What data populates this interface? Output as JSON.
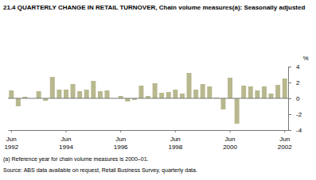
{
  "chart_data": {
    "type": "bar",
    "title": "21.4   QUARTERLY CHANGE IN RETAIL TURNOVER, Chain volume measures(a): Seasonally adjusted",
    "y_label": "%",
    "footnote": "(a) Reference year for chain volume measures is 2000–01.",
    "source": "Source: ABS data available on request, Retail Business Survey, quarterly data.",
    "categories": [
      "Jun 1992",
      null,
      null,
      null,
      null,
      null,
      null,
      null,
      "Jun 1994",
      null,
      null,
      null,
      null,
      null,
      null,
      null,
      "Jun 1996",
      null,
      null,
      null,
      null,
      null,
      null,
      null,
      "Jun 1998",
      null,
      null,
      null,
      null,
      null,
      null,
      null,
      "Jun 2000",
      null,
      null,
      null,
      null,
      null,
      null,
      null,
      "Jun 2002"
    ],
    "values": [
      1.0,
      -1.0,
      0.2,
      0.0,
      0.9,
      -0.3,
      2.7,
      1.1,
      1.1,
      1.8,
      0.9,
      1.1,
      2.2,
      0.9,
      1.0,
      0.0,
      0.3,
      -0.4,
      -0.2,
      1.6,
      0.3,
      1.9,
      0.7,
      0.8,
      1.1,
      0.6,
      3.2,
      1.1,
      1.8,
      1.5,
      0.1,
      -1.4,
      2.6,
      -3.2,
      1.6,
      1.5,
      1.0,
      1.5,
      0.6,
      1.7,
      2.5
    ],
    "color": "#b8b88e",
    "ylim": [
      -4,
      4
    ],
    "yticks": [
      -4,
      -2,
      0,
      2,
      4
    ],
    "grid": false
  }
}
